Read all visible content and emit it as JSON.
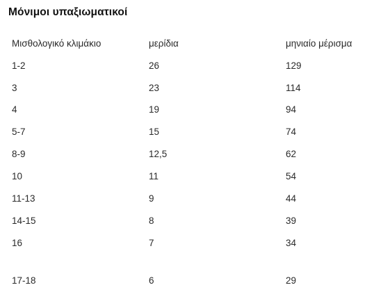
{
  "title": "Μόνιμοι υπαξιωματικοί",
  "table": {
    "headers": [
      "Μισθολογικό κλιμάκιο",
      "μερίδια",
      "μηνιαίο μέρισμα"
    ],
    "rows": [
      [
        "1-2",
        "26",
        "129"
      ],
      [
        "3",
        "23",
        "114"
      ],
      [
        "4",
        "19",
        "94"
      ],
      [
        "5-7",
        "15",
        "74"
      ],
      [
        "8-9",
        "12,5",
        "62"
      ],
      [
        "10",
        "11",
        "54"
      ],
      [
        "11-13",
        "9",
        "44"
      ],
      [
        "14-15",
        "8",
        "39"
      ],
      [
        "16",
        "7",
        "34"
      ],
      [
        "17-18",
        "6",
        "29"
      ]
    ]
  }
}
